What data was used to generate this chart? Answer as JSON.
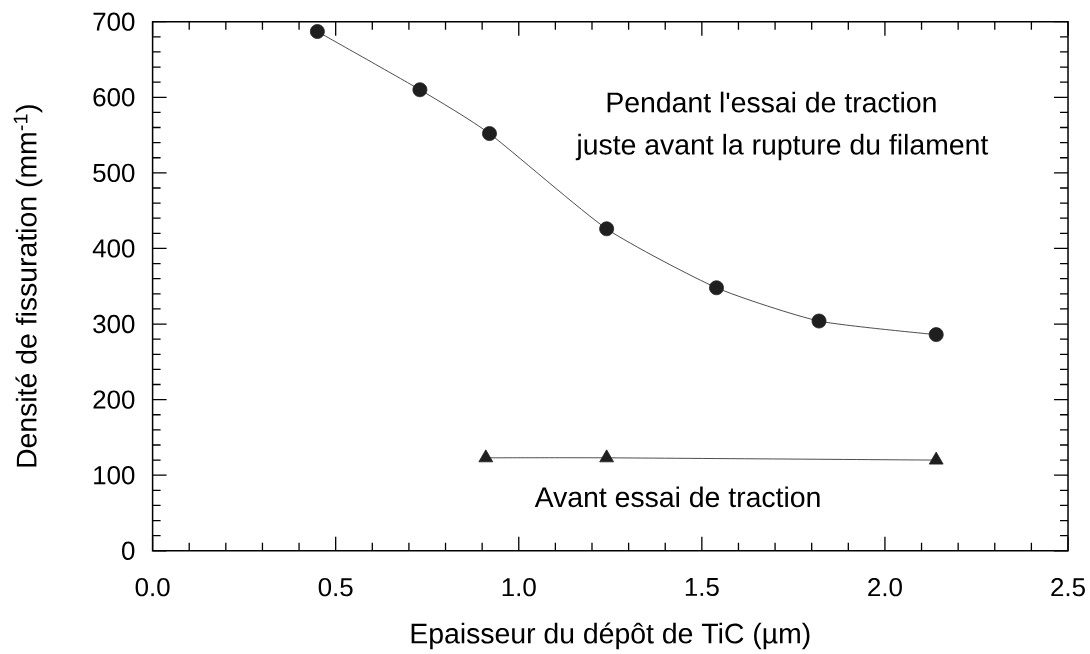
{
  "chart_data": {
    "type": "line",
    "xlabel": "Epaisseur du dépôt de TiC (µm)",
    "ylabel": "Densité de fissuration (mm$^{-1}$)",
    "annotations": [
      "Pendant l'essai de traction",
      "juste avant la rupture du filament",
      "Avant essai de traction"
    ],
    "xlim": [
      0,
      2.5
    ],
    "ylim": [
      0,
      700
    ],
    "xticks": [
      {
        "value": 0,
        "label": "0.0"
      },
      {
        "value": 0.1,
        "label": null
      },
      {
        "value": 0.2,
        "label": null
      },
      {
        "value": 0.3,
        "label": null
      },
      {
        "value": 0.4,
        "label": null
      },
      0.5,
      {
        "value": 0.6,
        "label": null
      },
      {
        "value": 0.7,
        "label": null
      },
      {
        "value": 0.8,
        "label": null
      },
      {
        "value": 0.9,
        "label": null
      },
      {
        "value": 1,
        "label": "1.0"
      },
      {
        "value": 1.1,
        "label": null
      },
      {
        "value": 1.2,
        "label": null
      },
      {
        "value": 1.3,
        "label": null
      },
      {
        "value": 1.4,
        "label": null
      },
      1.5,
      {
        "value": 1.6,
        "label": null
      },
      {
        "value": 1.7,
        "label": null
      },
      {
        "value": 1.8,
        "label": null
      },
      {
        "value": 1.9,
        "label": null
      },
      {
        "value": 2,
        "label": "2.0"
      },
      {
        "value": 2.1,
        "label": null
      },
      {
        "value": 2.2,
        "label": null
      },
      {
        "value": 2.3,
        "label": null
      },
      {
        "value": 2.4,
        "label": null
      },
      2.5
    ],
    "yticks": [
      0,
      {
        "value": 20,
        "label": null
      },
      {
        "value": 40,
        "label": null
      },
      {
        "value": 60,
        "label": null
      },
      {
        "value": 80,
        "label": null
      },
      100,
      {
        "value": 120,
        "label": null
      },
      {
        "value": 140,
        "label": null
      },
      {
        "value": 160,
        "label": null
      },
      {
        "value": 180,
        "label": null
      },
      200,
      {
        "value": 220,
        "label": null
      },
      {
        "value": 240,
        "label": null
      },
      {
        "value": 260,
        "label": null
      },
      {
        "value": 280,
        "label": null
      },
      300,
      {
        "value": 320,
        "label": null
      },
      {
        "value": 340,
        "label": null
      },
      {
        "value": 360,
        "label": null
      },
      {
        "value": 380,
        "label": null
      },
      400,
      {
        "value": 420,
        "label": null
      },
      {
        "value": 440,
        "label": null
      },
      {
        "value": 460,
        "label": null
      },
      {
        "value": 480,
        "label": null
      },
      500,
      {
        "value": 520,
        "label": null
      },
      {
        "value": 540,
        "label": null
      },
      {
        "value": 560,
        "label": null
      },
      {
        "value": 580,
        "label": null
      },
      600,
      {
        "value": 620,
        "label": null
      },
      {
        "value": 640,
        "label": null
      },
      {
        "value": 660,
        "label": null
      },
      {
        "value": 680,
        "label": null
      },
      700
    ],
    "series": [
      {
        "color": "#1f1f1f",
        "marker": "circle",
        "x": [
          0.45,
          0.73,
          0.92,
          1.24,
          1.54,
          1.82,
          2.14
        ],
        "values": [
          687,
          610,
          552,
          426,
          348,
          304,
          286
        ]
      },
      {
        "color": "#1f1f1f",
        "marker": "triangle",
        "x": [
          0.91,
          1.24,
          2.14
        ],
        "values": [
          123,
          123,
          120
        ]
      }
    ]
  }
}
